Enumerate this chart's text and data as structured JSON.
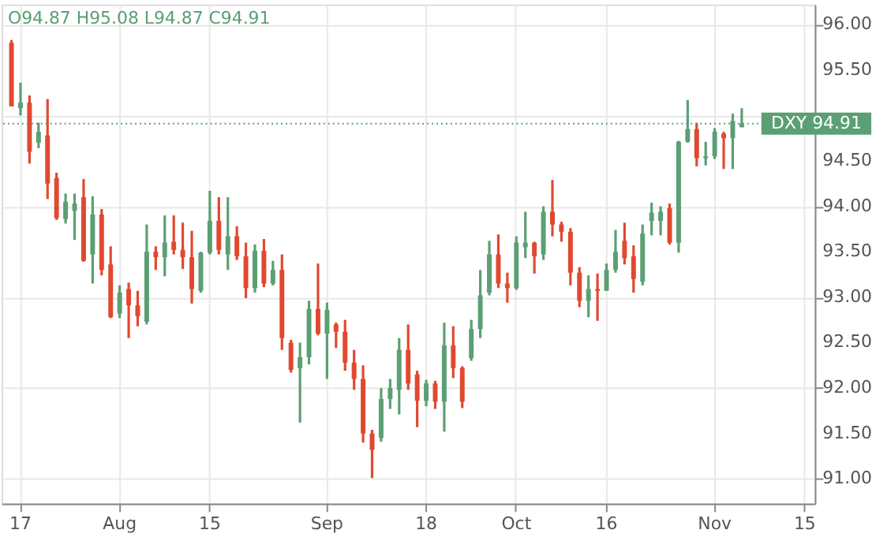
{
  "chart_data": {
    "type": "candlestick",
    "categories": [
      null,
      "17",
      null,
      null,
      null,
      null,
      null,
      null,
      null,
      null,
      null,
      null,
      "Aug",
      null,
      null,
      null,
      null,
      null,
      null,
      null,
      null,
      null,
      "15",
      null,
      null,
      null,
      null,
      null,
      null,
      null,
      null,
      null,
      null,
      null,
      null,
      "Sep",
      null,
      null,
      null,
      null,
      null,
      null,
      null,
      null,
      null,
      null,
      "18",
      null,
      null,
      null,
      null,
      null,
      null,
      null,
      null,
      null,
      "Oct",
      null,
      null,
      null,
      null,
      null,
      null,
      null,
      null,
      null,
      "16",
      null,
      null,
      null,
      null,
      null,
      null,
      null,
      null,
      null,
      null,
      null,
      "Nov",
      null,
      null,
      null,
      null,
      null,
      null,
      null,
      null,
      null,
      "15"
    ],
    "ohlc": [
      [
        95.8,
        95.83,
        95.1,
        95.1
      ],
      [
        95.08,
        95.36,
        95.0,
        95.14
      ],
      [
        95.14,
        95.22,
        94.47,
        94.6
      ],
      [
        94.7,
        94.92,
        94.64,
        94.82
      ],
      [
        94.78,
        95.18,
        94.08,
        94.25
      ],
      [
        94.31,
        94.37,
        93.85,
        93.87
      ],
      [
        93.86,
        94.14,
        93.81,
        94.05
      ],
      [
        93.95,
        94.14,
        93.63,
        94.03
      ],
      [
        94.1,
        94.3,
        93.39,
        93.4
      ],
      [
        93.47,
        94.11,
        93.15,
        93.91
      ],
      [
        93.91,
        93.97,
        93.24,
        93.3
      ],
      [
        93.36,
        93.56,
        92.77,
        92.78
      ],
      [
        92.82,
        93.13,
        92.77,
        93.05
      ],
      [
        93.09,
        93.16,
        92.55,
        92.91
      ],
      [
        92.91,
        93.07,
        92.68,
        92.79
      ],
      [
        92.73,
        93.8,
        92.7,
        93.5
      ],
      [
        93.5,
        93.56,
        93.3,
        93.44
      ],
      [
        93.44,
        93.9,
        93.23,
        93.6
      ],
      [
        93.61,
        93.9,
        93.47,
        93.52
      ],
      [
        93.52,
        93.82,
        93.31,
        93.44
      ],
      [
        93.44,
        93.73,
        92.93,
        93.09
      ],
      [
        93.07,
        93.5,
        93.05,
        93.49
      ],
      [
        93.49,
        94.17,
        93.47,
        93.84
      ],
      [
        93.84,
        94.1,
        93.47,
        93.52
      ],
      [
        93.47,
        94.1,
        93.3,
        93.67
      ],
      [
        93.67,
        93.78,
        93.41,
        93.45
      ],
      [
        93.45,
        93.6,
        92.99,
        93.1
      ],
      [
        93.1,
        93.58,
        93.05,
        93.51
      ],
      [
        93.51,
        93.64,
        93.11,
        93.15
      ],
      [
        93.15,
        93.4,
        93.13,
        93.3
      ],
      [
        93.3,
        93.47,
        92.42,
        92.55
      ],
      [
        92.5,
        92.53,
        92.17,
        92.2
      ],
      [
        92.22,
        92.5,
        91.62,
        92.34
      ],
      [
        92.34,
        92.96,
        92.26,
        92.87
      ],
      [
        92.87,
        93.37,
        92.58,
        92.6
      ],
      [
        92.6,
        92.94,
        92.1,
        92.86
      ],
      [
        92.7,
        92.72,
        92.44,
        92.62
      ],
      [
        92.62,
        92.75,
        92.19,
        92.28
      ],
      [
        92.28,
        92.42,
        91.98,
        92.1
      ],
      [
        92.1,
        92.25,
        91.4,
        91.5
      ],
      [
        91.5,
        91.54,
        91.01,
        91.32
      ],
      [
        91.45,
        92.0,
        91.41,
        91.88
      ],
      [
        91.88,
        92.1,
        91.77,
        92.0
      ],
      [
        91.98,
        92.55,
        91.71,
        92.42
      ],
      [
        92.42,
        92.7,
        91.98,
        92.05
      ],
      [
        92.15,
        92.19,
        91.57,
        91.86
      ],
      [
        91.86,
        92.09,
        91.8,
        92.05
      ],
      [
        92.05,
        92.08,
        91.77,
        91.85
      ],
      [
        91.85,
        92.72,
        91.52,
        92.47
      ],
      [
        92.47,
        92.68,
        92.11,
        92.22
      ],
      [
        92.22,
        92.24,
        91.78,
        91.85
      ],
      [
        92.33,
        92.75,
        92.3,
        92.65
      ],
      [
        92.65,
        93.3,
        92.55,
        93.02
      ],
      [
        93.05,
        93.62,
        93.02,
        93.47
      ],
      [
        93.47,
        93.69,
        93.1,
        93.15
      ],
      [
        93.15,
        93.27,
        92.94,
        93.1
      ],
      [
        93.1,
        93.67,
        93.08,
        93.6
      ],
      [
        93.55,
        93.94,
        93.43,
        93.6
      ],
      [
        93.6,
        93.61,
        93.26,
        93.45
      ],
      [
        93.47,
        94.0,
        93.41,
        93.94
      ],
      [
        93.94,
        94.29,
        93.67,
        93.8
      ],
      [
        93.8,
        93.83,
        93.61,
        93.72
      ],
      [
        93.72,
        93.76,
        93.13,
        93.27
      ],
      [
        93.27,
        93.33,
        92.89,
        92.96
      ],
      [
        92.96,
        93.24,
        92.78,
        93.09
      ],
      [
        93.09,
        93.26,
        92.74,
        93.07
      ],
      [
        93.07,
        93.37,
        93.07,
        93.3
      ],
      [
        93.3,
        93.74,
        93.27,
        93.5
      ],
      [
        93.62,
        93.82,
        93.36,
        93.43
      ],
      [
        93.45,
        93.57,
        93.05,
        93.2
      ],
      [
        93.17,
        93.8,
        93.13,
        93.7
      ],
      [
        93.84,
        94.04,
        93.68,
        93.93
      ],
      [
        93.84,
        94.0,
        93.68,
        93.94
      ],
      [
        93.98,
        94.03,
        93.58,
        93.6
      ],
      [
        93.6,
        94.72,
        93.49,
        94.71
      ],
      [
        94.71,
        95.17,
        94.7,
        94.85
      ],
      [
        94.85,
        94.92,
        94.44,
        94.53
      ],
      [
        94.53,
        94.71,
        94.45,
        94.55
      ],
      [
        94.55,
        94.86,
        94.52,
        94.82
      ],
      [
        94.8,
        94.82,
        94.41,
        94.75
      ],
      [
        94.75,
        95.02,
        94.41,
        94.94
      ],
      [
        94.87,
        95.08,
        94.87,
        94.91
      ],
      null,
      null,
      null,
      null,
      null,
      null,
      null
    ],
    "colors": [
      "#e0492f",
      "#5b9f74",
      "#e0492f",
      "#5b9f74",
      "#e0492f",
      "#e0492f",
      "#5b9f74",
      "#5b9f74",
      "#e0492f",
      "#5b9f74",
      "#e0492f",
      "#e0492f",
      "#5b9f74",
      "#e0492f",
      "#e0492f",
      "#5b9f74",
      "#e0492f",
      "#5b9f74",
      "#e0492f",
      "#e0492f",
      "#e0492f",
      "#5b9f74",
      "#5b9f74",
      "#e0492f",
      "#5b9f74",
      "#e0492f",
      "#e0492f",
      "#5b9f74",
      "#e0492f",
      "#5b9f74",
      "#e0492f",
      "#e0492f",
      "#5b9f74",
      "#5b9f74",
      "#e0492f",
      "#5b9f74",
      "#e0492f",
      "#e0492f",
      "#e0492f",
      "#e0492f",
      "#e0492f",
      "#5b9f74",
      "#5b9f74",
      "#5b9f74",
      "#e0492f",
      "#e0492f",
      "#5b9f74",
      "#e0492f",
      "#5b9f74",
      "#e0492f",
      "#e0492f",
      "#5b9f74",
      "#5b9f74",
      "#5b9f74",
      "#e0492f",
      "#e0492f",
      "#5b9f74",
      "#5b9f74",
      "#e0492f",
      "#5b9f74",
      "#e0492f",
      "#e0492f",
      "#e0492f",
      "#e0492f",
      "#5b9f74",
      "#e0492f",
      "#5b9f74",
      "#5b9f74",
      "#e0492f",
      "#e0492f",
      "#5b9f74",
      "#5b9f74",
      "#5b9f74",
      "#e0492f",
      "#5b9f74",
      "#5b9f74",
      "#e0492f",
      "#5b9f74",
      "#5b9f74",
      "#e0492f",
      "#5b9f74",
      "#5b9f74",
      null,
      null,
      null,
      null,
      null,
      null,
      null
    ],
    "ylim": [
      90.73,
      96.22
    ],
    "yticks": [
      {
        "value": 91,
        "label": "91.00"
      },
      {
        "value": 91.5,
        "label": "91.50"
      },
      {
        "value": 92,
        "label": "92.00"
      },
      {
        "value": 92.5,
        "label": "92.50"
      },
      {
        "value": 93,
        "label": "93.00"
      },
      {
        "value": 93.5,
        "label": "93.50"
      },
      {
        "value": 94,
        "label": "94.00"
      },
      {
        "value": 94.5,
        "label": "94.50"
      },
      {
        "value": 95,
        "label": null
      },
      {
        "value": 95.5,
        "label": "95.50"
      },
      {
        "value": 96,
        "label": "96.00"
      }
    ],
    "grid": true,
    "ref_lines": [
      {
        "axis": "y",
        "value": 94.91,
        "label": "DXY 94.91",
        "color": "#5b9f74",
        "line_style": "dotted"
      }
    ],
    "annotations": [
      "O94.87  H95.08  L94.87  C94.91"
    ]
  }
}
